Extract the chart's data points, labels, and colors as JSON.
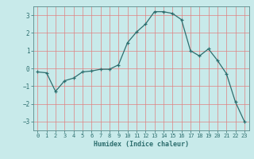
{
  "x": [
    0,
    1,
    2,
    3,
    4,
    5,
    6,
    7,
    8,
    9,
    10,
    11,
    12,
    13,
    14,
    15,
    16,
    17,
    18,
    19,
    20,
    21,
    22,
    23
  ],
  "y": [
    -0.2,
    -0.25,
    -1.3,
    -0.7,
    -0.55,
    -0.2,
    -0.15,
    -0.05,
    -0.05,
    0.2,
    1.45,
    2.05,
    2.5,
    3.2,
    3.2,
    3.1,
    2.75,
    1.0,
    0.7,
    1.1,
    0.45,
    -0.3,
    -1.9,
    -3.0
  ],
  "xlabel": "Humidex (Indice chaleur)",
  "ylim": [
    -3.5,
    3.5
  ],
  "xlim": [
    -0.5,
    23.5
  ],
  "yticks": [
    -3,
    -2,
    -1,
    0,
    1,
    2,
    3
  ],
  "xticks": [
    0,
    1,
    2,
    3,
    4,
    5,
    6,
    7,
    8,
    9,
    10,
    11,
    12,
    13,
    14,
    15,
    16,
    17,
    18,
    19,
    20,
    21,
    22,
    23
  ],
  "line_color": "#2d6e6e",
  "marker": "+",
  "bg_color": "#c8eaea",
  "grid_color": "#e08080",
  "axes_color": "#5a8a8a",
  "tick_color": "#2d6e6e",
  "label_color": "#2d6e6e"
}
